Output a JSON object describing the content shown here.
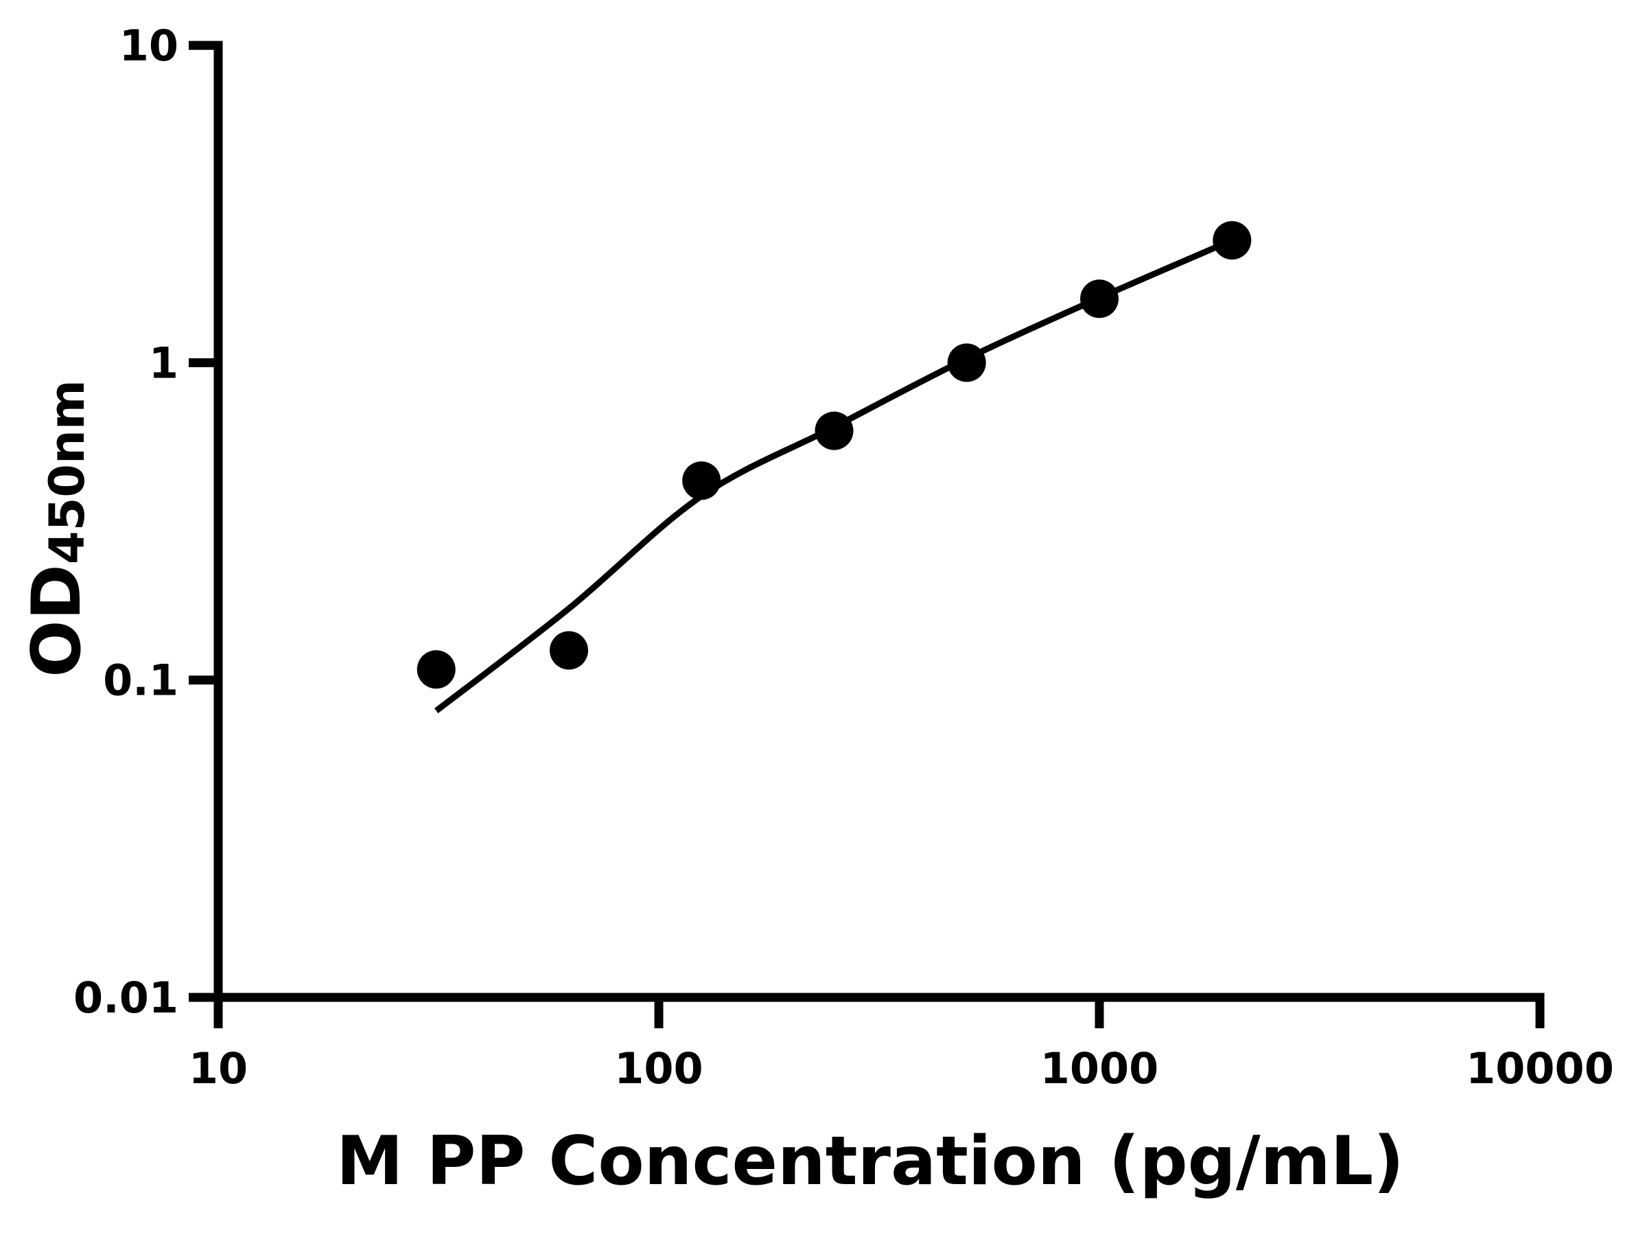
{
  "figure": {
    "background_color": "#ffffff",
    "ink_color": "#000000"
  },
  "chart_data": {
    "type": "scatter",
    "title": "",
    "xlabel": "M PP Concentration (pg/mL)",
    "ylabel_main": "OD",
    "ylabel_sub": "450nm",
    "x_scale": "log10",
    "y_scale": "log10",
    "xlim": [
      10,
      10000
    ],
    "ylim": [
      0.01,
      10
    ],
    "x_ticks": [
      "10",
      "100",
      "1000",
      "10000"
    ],
    "y_ticks": [
      "10",
      "1",
      "0.1",
      "0.01"
    ],
    "grid": false,
    "legend": "none",
    "series": [
      {
        "name": "standard-points",
        "type": "scatter",
        "marker": "filled-circle",
        "color": "#000000",
        "x": [
          31.25,
          62.5,
          125,
          250,
          500,
          1000,
          2000
        ],
        "y": [
          0.108,
          0.124,
          0.425,
          0.61,
          1.0,
          1.59,
          2.43
        ]
      },
      {
        "name": "fitted-standard-curve",
        "type": "line",
        "color": "#000000",
        "x": [
          31.25,
          62.5,
          125,
          250,
          500,
          1000,
          2000
        ],
        "y": [
          0.08,
          0.168,
          0.38,
          0.627,
          1.03,
          1.6,
          2.43
        ]
      }
    ]
  }
}
